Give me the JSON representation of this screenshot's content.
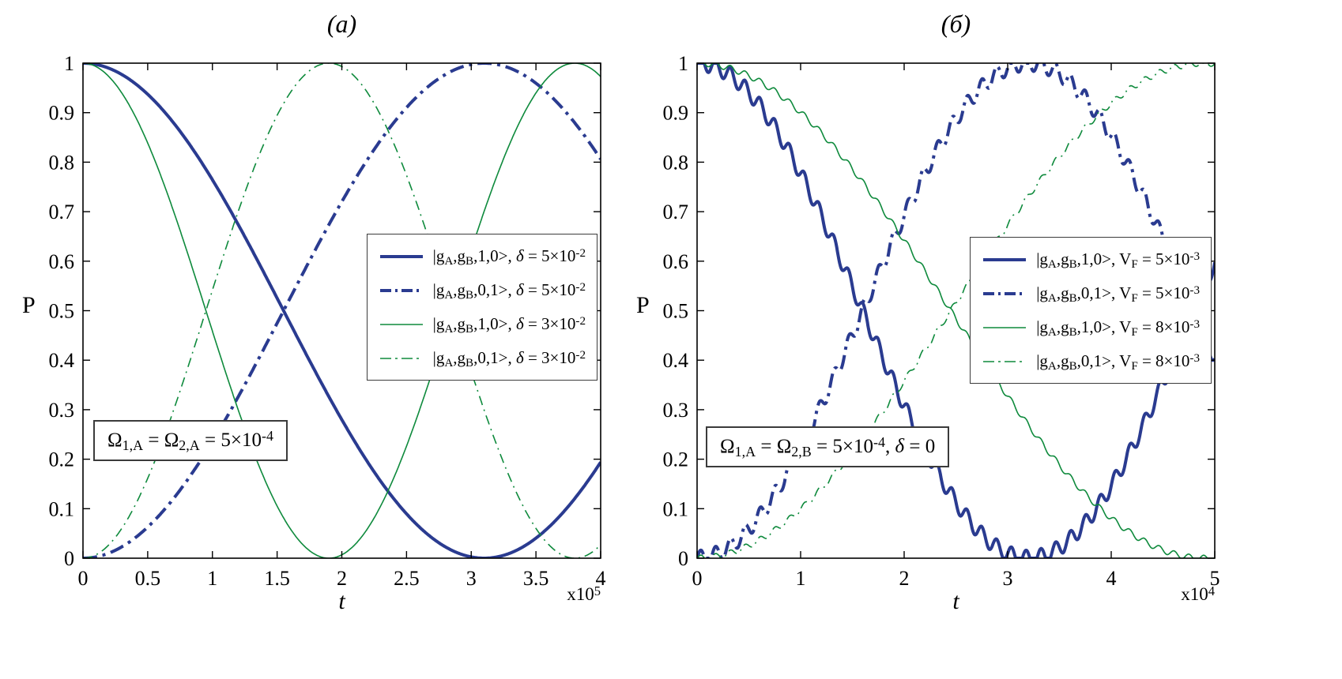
{
  "figure": {
    "background": "#ffffff",
    "axis_color": "#000000"
  },
  "chart_data": [
    {
      "type": "line",
      "title": "(a)",
      "xlabel": "t",
      "ylabel": "P",
      "x_scale_note": "x10^{5}",
      "xlim": [
        0,
        4
      ],
      "ylim": [
        0,
        1
      ],
      "xticks": [
        0,
        0.5,
        1,
        1.5,
        2,
        2.5,
        3,
        3.5,
        4
      ],
      "yticks": [
        0,
        0.1,
        0.2,
        0.3,
        0.4,
        0.5,
        0.6,
        0.7,
        0.8,
        0.9,
        1
      ],
      "grid": false,
      "legend_position": "middle-right",
      "annotation": "Ω_{1,A} = Ω_{2,A} = 5×10^{-4}",
      "series": [
        {
          "name": "|g_{A},g_{B},1,0>, *δ* = 5×10^{-2}",
          "color": "#2a3b90",
          "line_style": "solid",
          "line_width": 4,
          "model": {
            "form": "cos2",
            "period": 6.2,
            "ripple_amp": 0,
            "ripple_freq": 0
          }
        },
        {
          "name": "|g_{A},g_{B},0,1>, *δ* = 5×10^{-2}",
          "color": "#2a3b90",
          "line_style": "dashdot",
          "line_width": 4,
          "model": {
            "form": "sin2",
            "period": 6.2,
            "ripple_amp": 0,
            "ripple_freq": 0
          }
        },
        {
          "name": "|g_{A},g_{B},1,0>, *δ* = 3×10^{-2}",
          "color": "#0e8a3c",
          "line_style": "solid",
          "line_width": 1.6,
          "model": {
            "form": "cos2",
            "period": 3.8,
            "ripple_amp": 0,
            "ripple_freq": 0
          }
        },
        {
          "name": "|g_{A},g_{B},0,1>, *δ* = 3×10^{-2}",
          "color": "#0e8a3c",
          "line_style": "dashdot",
          "line_width": 1.6,
          "model": {
            "form": "sin2",
            "period": 3.8,
            "ripple_amp": 0,
            "ripple_freq": 0
          }
        }
      ]
    },
    {
      "type": "line",
      "title": "(б)",
      "xlabel": "t",
      "ylabel": "P",
      "x_scale_note": "x10^{4}",
      "xlim": [
        0,
        5
      ],
      "ylim": [
        0,
        1
      ],
      "xticks": [
        0,
        1,
        2,
        3,
        4,
        5
      ],
      "yticks": [
        0,
        0.1,
        0.2,
        0.3,
        0.4,
        0.5,
        0.6,
        0.7,
        0.8,
        0.9,
        1
      ],
      "grid": false,
      "legend_position": "middle-right",
      "annotation": "Ω_{1,A} = Ω_{2,B} = 5×10^{-4}, *δ* = 0",
      "series": [
        {
          "name": "|g_{A},g_{B},1,0>, V_{F} = 5×10^{-3}",
          "color": "#2a3b90",
          "line_style": "solid",
          "line_width": 4,
          "model": {
            "form": "cos2",
            "period": 6.4,
            "ripple_amp": 0.016,
            "ripple_freq": 7
          }
        },
        {
          "name": "|g_{A},g_{B},0,1>, V_{F} = 5×10^{-3}",
          "color": "#2a3b90",
          "line_style": "dashdot",
          "line_width": 4,
          "model": {
            "form": "sin2",
            "period": 6.4,
            "ripple_amp": 0.016,
            "ripple_freq": 7
          }
        },
        {
          "name": "|g_{A},g_{B},1,0>, V_{F} = 8×10^{-3}",
          "color": "#0e8a3c",
          "line_style": "solid",
          "line_width": 1.6,
          "model": {
            "form": "cos2",
            "period": 9.8,
            "ripple_amp": 0.006,
            "ripple_freq": 7
          }
        },
        {
          "name": "|g_{A},g_{B},0,1>, V_{F} = 8×10^{-3}",
          "color": "#0e8a3c",
          "line_style": "dashdot",
          "line_width": 1.6,
          "model": {
            "form": "sin2",
            "period": 9.8,
            "ripple_amp": 0.006,
            "ripple_freq": 7
          }
        }
      ]
    }
  ]
}
